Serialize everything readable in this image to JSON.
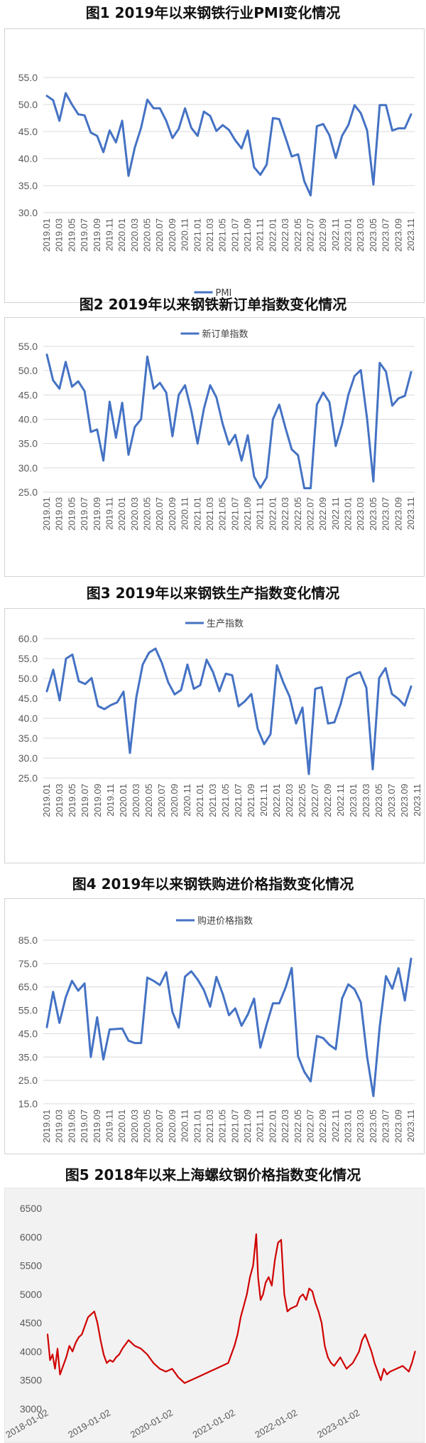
{
  "chart_data": [
    {
      "figure": "图1  2019年以来钢铁行业PMI变化情况",
      "type": "line",
      "legend": "PMI",
      "legend_position": "bottom",
      "color": "#4472C4",
      "ylim": [
        30,
        55
      ],
      "yticks": [
        "30.0",
        "35.0",
        "40.0",
        "45.0",
        "50.0",
        "55.0"
      ],
      "x_labels": [
        "2019.01",
        "2019.03",
        "2019.05",
        "2019.07",
        "2019.09",
        "2019.11",
        "2020.01",
        "2020.03",
        "2020.05",
        "2020.07",
        "2020.09",
        "2020.11",
        "2021.01",
        "2021.03",
        "2021.05",
        "2021.07",
        "2021.09",
        "2021.11",
        "2022.01",
        "2022.03",
        "2022.05",
        "2022.07",
        "2022.09",
        "2022.11",
        "2023.01",
        "2023.03",
        "2023.05",
        "2023.07",
        "2023.09",
        "2023.11"
      ],
      "values": [
        51.6,
        50.8,
        47.0,
        52.1,
        50.0,
        48.2,
        48.0,
        44.8,
        44.2,
        41.2,
        45.2,
        43.0,
        47.0,
        36.8,
        42.0,
        45.7,
        50.9,
        49.3,
        49.3,
        47.0,
        43.8,
        45.5,
        49.3,
        45.7,
        44.2,
        48.7,
        47.9,
        45.1,
        46.2,
        45.3,
        43.4,
        41.9,
        45.2,
        38.4,
        37.0,
        38.9,
        47.5,
        47.3,
        43.9,
        40.4,
        40.8,
        35.8,
        33.2,
        46.0,
        46.4,
        44.3,
        40.1,
        44.2,
        46.2,
        49.9,
        48.4,
        45.2,
        35.2,
        49.9,
        49.9,
        45.2,
        45.6,
        45.6,
        48.2
      ]
    },
    {
      "figure": "图2  2019年以来钢铁新订单指数变化情况",
      "type": "line",
      "legend": "新订单指数",
      "legend_position": "top",
      "color": "#4472C4",
      "ylim": [
        25,
        55
      ],
      "yticks": [
        "25.0",
        "30.0",
        "35.0",
        "40.0",
        "45.0",
        "50.0",
        "55.0"
      ],
      "x_labels": [
        "2019.01",
        "2019.03",
        "2019.05",
        "2019.07",
        "2019.09",
        "2019.11",
        "2020.01",
        "2020.03",
        "2020.05",
        "2020.07",
        "2020.09",
        "2020.11",
        "2021.01",
        "2021.03",
        "2021.05",
        "2021.07",
        "2021.09",
        "2021.11",
        "2022.01",
        "2022.03",
        "2022.05",
        "2022.07",
        "2022.09",
        "2022.11",
        "2023.01",
        "2023.03",
        "2023.05",
        "2023.07",
        "2023.09",
        "2023.11"
      ],
      "values": [
        53.3,
        48.0,
        46.3,
        51.8,
        46.7,
        47.8,
        45.8,
        37.4,
        37.9,
        31.5,
        43.6,
        36.2,
        43.4,
        32.7,
        38.4,
        40.0,
        52.9,
        46.3,
        47.5,
        45.5,
        36.5,
        45.0,
        47.0,
        41.8,
        35.0,
        42.1,
        47.0,
        44.5,
        39.0,
        34.8,
        36.8,
        31.5,
        36.7,
        28.2,
        25.9,
        28.0,
        40.0,
        43.0,
        38.2,
        33.8,
        32.6,
        25.8,
        25.8,
        43.0,
        45.5,
        43.5,
        34.5,
        38.9,
        45.0,
        48.9,
        50.1,
        40.0,
        27.2,
        51.6,
        49.8,
        42.8,
        44.3,
        44.8,
        49.7
      ]
    },
    {
      "figure": "图3   2019年以来钢铁生产指数变化情况",
      "type": "line",
      "legend": "生产指数",
      "legend_position": "top",
      "color": "#4472C4",
      "ylim": [
        25,
        60
      ],
      "yticks": [
        "25.0",
        "30.0",
        "35.0",
        "40.0",
        "45.0",
        "50.0",
        "55.0",
        "60.0"
      ],
      "x_labels": [
        "2019.01",
        "2019.03",
        "2019.05",
        "2019.07",
        "2019.09",
        "2019.11",
        "2020.01",
        "2020.03",
        "2020.05",
        "2020.07",
        "2020.09",
        "2020.11",
        "2021.01",
        "2021.03",
        "2021.05",
        "2021.07",
        "2021.09",
        "2021.11",
        "2022.01",
        "2022.03",
        "2022.05",
        "2022.07",
        "2022.09",
        "2022.11",
        "2023.01",
        "2023.03",
        "2023.05",
        "2023.07",
        "2023.09",
        "2023.11"
      ],
      "values": [
        46.8,
        52.2,
        44.5,
        55.0,
        56.0,
        49.3,
        48.6,
        50.1,
        43.1,
        42.3,
        43.3,
        44.0,
        46.7,
        31.3,
        45.3,
        53.5,
        56.5,
        57.5,
        53.9,
        49.0,
        46.0,
        47.1,
        53.5,
        47.4,
        48.3,
        54.7,
        51.6,
        46.8,
        51.2,
        50.8,
        43.0,
        44.3,
        46.1,
        37.3,
        33.5,
        36.0,
        53.3,
        49.0,
        45.4,
        38.7,
        42.7,
        26.0,
        47.4,
        47.8,
        38.7,
        39.0,
        43.7,
        50.1,
        51.0,
        51.6,
        47.7,
        27.2,
        50.1,
        52.6,
        46.1,
        44.9,
        43.2,
        48.0
      ]
    },
    {
      "figure": "图4  2019年以来钢铁购进价格指数变化情况",
      "type": "line",
      "legend": "购进价格指数",
      "legend_position": "top",
      "color": "#4472C4",
      "ylim": [
        15,
        85
      ],
      "yticks": [
        "15.0",
        "25.0",
        "35.0",
        "45.0",
        "55.0",
        "65.0",
        "75.0",
        "85.0"
      ],
      "x_labels": [
        "2019.01",
        "2019.03",
        "2019.05",
        "2019.07",
        "2019.09",
        "2019.11",
        "2020.01",
        "2020.03",
        "2020.05",
        "2020.07",
        "2020.09",
        "2020.11",
        "2021.01",
        "2021.03",
        "2021.05",
        "2021.07",
        "2021.09",
        "2021.11",
        "2022.01",
        "2022.03",
        "2022.05",
        "2022.07",
        "2022.09",
        "2022.11",
        "2023.01",
        "2023.03",
        "2023.05",
        "2023.07",
        "2023.09",
        "2023.11"
      ],
      "values": [
        47.8,
        62.9,
        49.6,
        60.5,
        67.6,
        63.4,
        66.5,
        35.0,
        52.0,
        34.0,
        46.8,
        47.0,
        47.2,
        42.0,
        41.0,
        41.0,
        69.0,
        67.6,
        65.8,
        71.3,
        54.3,
        47.6,
        69.4,
        71.7,
        68.2,
        63.7,
        56.5,
        69.3,
        62.0,
        52.9,
        55.8,
        48.4,
        53.2,
        60.0,
        39.0,
        49.0,
        58.0,
        58.0,
        64.6,
        73.1,
        35.3,
        28.7,
        24.6,
        44.0,
        43.1,
        40.2,
        38.3,
        60.0,
        66.1,
        64.0,
        58.4,
        35.0,
        18.3,
        48.0,
        69.6,
        64.2,
        73.0,
        59.2,
        77.1
      ]
    },
    {
      "figure": "图5  2018年以来上海螺纹钢价格指数变化情况",
      "type": "line",
      "color": "#D00000",
      "ylim": [
        3000,
        6500
      ],
      "yticks": [
        "3000",
        "3500",
        "4000",
        "4500",
        "5000",
        "5500",
        "6000",
        "6500"
      ],
      "x_labels": [
        "2018-01-02",
        "2019-01-02",
        "2020-01-02",
        "2021-01-02",
        "2022-01-02",
        "2023-01-02"
      ],
      "x": [
        2018.0,
        2018.04,
        2018.08,
        2018.12,
        2018.16,
        2018.2,
        2018.25,
        2018.3,
        2018.35,
        2018.4,
        2018.45,
        2018.5,
        2018.55,
        2018.6,
        2018.65,
        2018.7,
        2018.75,
        2018.8,
        2018.85,
        2018.9,
        2018.95,
        2019.0,
        2019.05,
        2019.1,
        2019.15,
        2019.2,
        2019.3,
        2019.4,
        2019.5,
        2019.6,
        2019.7,
        2019.8,
        2019.9,
        2020.0,
        2020.1,
        2020.2,
        2020.3,
        2020.4,
        2020.5,
        2020.6,
        2020.7,
        2020.8,
        2020.9,
        2021.0,
        2021.05,
        2021.1,
        2021.15,
        2021.2,
        2021.25,
        2021.3,
        2021.35,
        2021.38,
        2021.42,
        2021.46,
        2021.5,
        2021.55,
        2021.6,
        2021.65,
        2021.7,
        2021.75,
        2021.8,
        2021.85,
        2021.9,
        2022.0,
        2022.05,
        2022.1,
        2022.15,
        2022.2,
        2022.25,
        2022.3,
        2022.35,
        2022.4,
        2022.45,
        2022.5,
        2022.55,
        2022.6,
        2022.7,
        2022.8,
        2022.9,
        2023.0,
        2023.05,
        2023.1,
        2023.15,
        2023.2,
        2023.25,
        2023.3,
        2023.35,
        2023.4,
        2023.45,
        2023.5,
        2023.6,
        2023.7,
        2023.8,
        2023.85,
        2023.9
      ],
      "values": [
        4300,
        3850,
        3950,
        3700,
        4050,
        3600,
        3750,
        3900,
        4100,
        4000,
        4150,
        4250,
        4300,
        4450,
        4600,
        4650,
        4700,
        4500,
        4200,
        3950,
        3800,
        3850,
        3820,
        3900,
        3950,
        4050,
        4200,
        4100,
        4050,
        3950,
        3800,
        3700,
        3650,
        3700,
        3550,
        3450,
        3500,
        3550,
        3600,
        3650,
        3700,
        3750,
        3800,
        4100,
        4300,
        4600,
        4800,
        5000,
        5300,
        5500,
        6050,
        5300,
        4900,
        5000,
        5200,
        5300,
        5150,
        5600,
        5900,
        5950,
        5000,
        4700,
        4750,
        4800,
        4950,
        5000,
        4900,
        5100,
        5050,
        4850,
        4700,
        4500,
        4100,
        3900,
        3800,
        3750,
        3900,
        3700,
        3800,
        4000,
        4200,
        4300,
        4150,
        4000,
        3800,
        3650,
        3500,
        3700,
        3600,
        3650,
        3700,
        3750,
        3650,
        3800,
        4000
      ]
    }
  ]
}
